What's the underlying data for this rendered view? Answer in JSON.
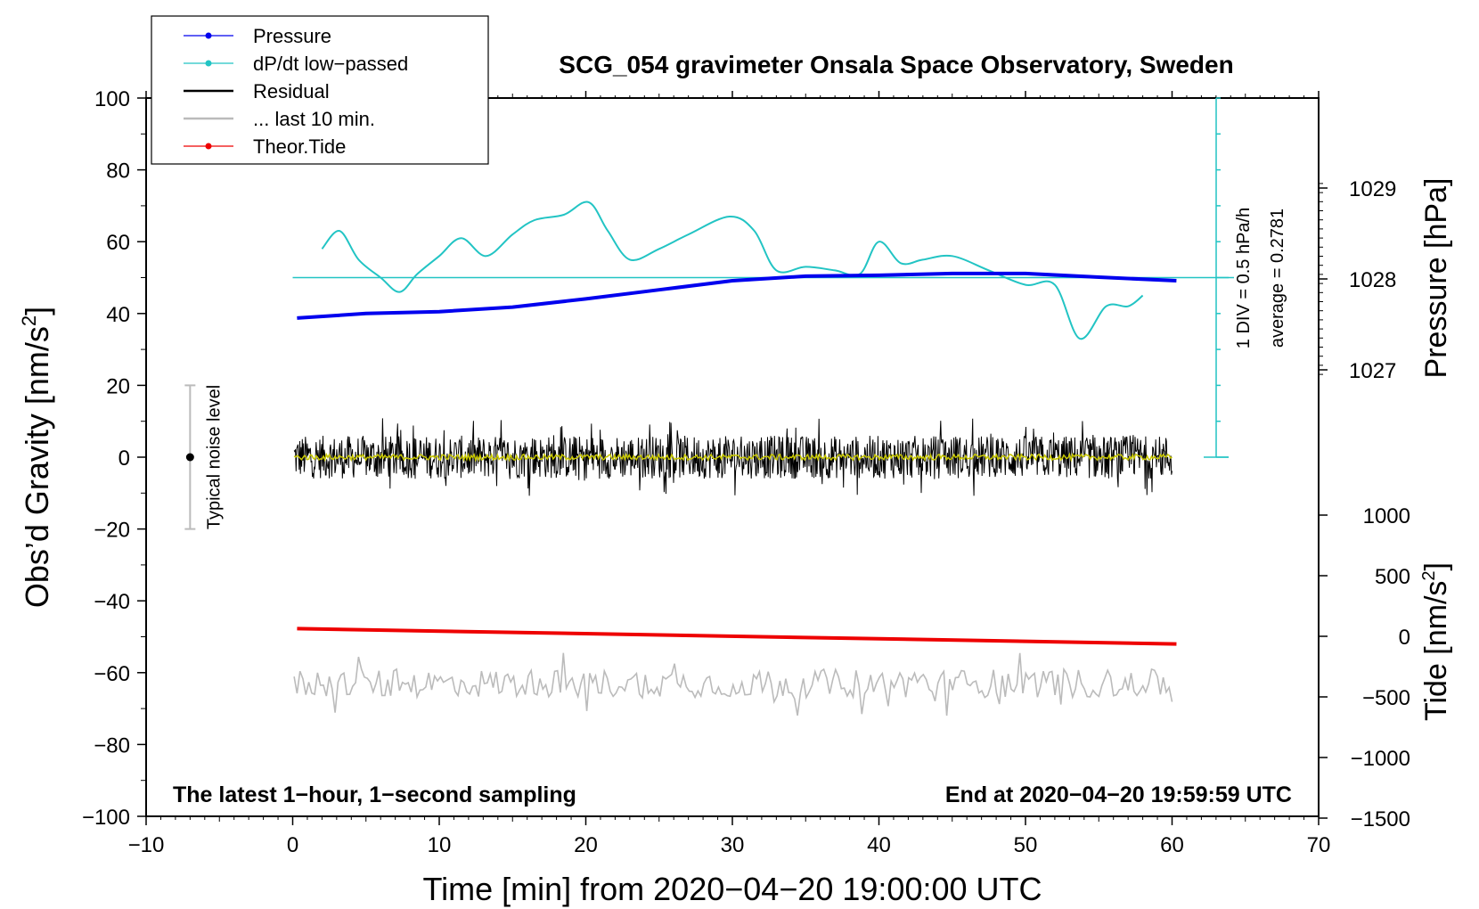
{
  "chart_data": {
    "type": "line",
    "title": "SCG_054 gravimeter Onsala Space Observatory, Sweden",
    "xlabel": "Time [min] from 2020−04−20 19:00:00 UTC",
    "ylabel_left": "Obs’d Gravity [nm/s",
    "ylabel_left_sup": "2",
    "ylabel_left_close": "]",
    "ylabel_right_pressure": "Pressure [hPa]",
    "ylabel_right_tide": "Tide [nm/s",
    "ylabel_right_tide_sup": "2",
    "ylabel_right_tide_close": "]",
    "xlim": [
      -10,
      70
    ],
    "ylim_left": [
      -100,
      100
    ],
    "x_ticks": [
      "−10",
      "0",
      "10",
      "20",
      "30",
      "40",
      "50",
      "60",
      "70"
    ],
    "y_ticks": [
      "100",
      "80",
      "60",
      "40",
      "20",
      "0",
      "−20",
      "−40",
      "−60",
      "−80",
      "−100"
    ],
    "pressure_axis": {
      "ticks": [
        "1029",
        "1028",
        "1027"
      ],
      "values": [
        1029,
        1028,
        1027
      ]
    },
    "tide_axis": {
      "ticks": [
        "1000",
        "500",
        "0",
        "−500",
        "−1000",
        "−1500"
      ],
      "values": [
        1000,
        500,
        0,
        -500,
        -1000,
        -1500
      ]
    },
    "legend": [
      {
        "label": "Pressure",
        "color": "#0000ee",
        "marker": true
      },
      {
        "label": "dP/dt low−passed",
        "color": "#22c4c4",
        "marker": true
      },
      {
        "label": "Residual",
        "color": "#000000",
        "marker": false
      },
      {
        "label": "... last 10 min.",
        "color": "#bbbbbb",
        "marker": false
      },
      {
        "label": "Theor.Tide",
        "color": "#ee0000",
        "marker": true
      }
    ],
    "series": [
      {
        "name": "Pressure",
        "color": "#0000ee",
        "unit": "hPa",
        "x": [
          0.3,
          5,
          10,
          15,
          20,
          25,
          30,
          35,
          40,
          45,
          50,
          55,
          60.3
        ],
        "values": [
          1027.57,
          1027.62,
          1027.64,
          1027.69,
          1027.78,
          1027.88,
          1027.98,
          1028.03,
          1028.04,
          1028.06,
          1028.06,
          1028.02,
          1027.98
        ]
      },
      {
        "name": "dP/dt low-passed",
        "color": "#22c4c4",
        "unit": "nm/s2 (plot scale)",
        "x": [
          2.0,
          3.2,
          4.5,
          6.0,
          7.3,
          8.5,
          10.0,
          11.5,
          13.2,
          15.0,
          16.5,
          18.5,
          20.2,
          21.5,
          23.0,
          25.0,
          27.0,
          29.8,
          31.5,
          33.0,
          35.0,
          37.0,
          38.7,
          40.0,
          41.5,
          43.0,
          45.0,
          47.5,
          50.0,
          52.0,
          53.7,
          55.5,
          57.0,
          58.0
        ],
        "values": [
          58,
          63,
          55,
          50,
          46,
          51,
          56,
          61,
          56,
          62,
          66,
          67.5,
          71,
          63,
          55,
          58,
          62,
          67,
          63,
          52,
          53,
          52,
          51,
          60,
          54,
          55,
          56,
          52,
          48,
          48,
          33,
          42,
          42,
          45
        ]
      },
      {
        "name": "Residual",
        "color": "#000000",
        "unit": "nm/s2",
        "x_range": [
          0.1,
          60.0
        ],
        "baseline": 0,
        "typical_amplitude": 6,
        "max_amplitude": 11
      },
      {
        "name": "... last 10 min.",
        "color": "#bbbbbb",
        "unit": "nm/s2",
        "x_range": [
          0.1,
          60.0
        ],
        "baseline": -63,
        "typical_amplitude": 4,
        "max_amplitude": 9
      },
      {
        "name": "Theor.Tide",
        "color": "#ee0000",
        "unit": "nm/s2 (tide axis)",
        "x": [
          0.3,
          60.3
        ],
        "values": [
          63,
          -63
        ]
      }
    ],
    "dpdt_reference_line": 50,
    "dpdt_scale_label": "1 DIV = 0.5 hPa/h",
    "dpdt_average_label": "average = 0.2781",
    "noise_bar": {
      "x": -7,
      "center": 0,
      "low": -20,
      "high": 20,
      "label": "Typical noise level"
    },
    "annotation_left": "The latest 1−hour, 1−second sampling",
    "annotation_right": "End at 2020−04−20 19:59:59 UTC"
  }
}
